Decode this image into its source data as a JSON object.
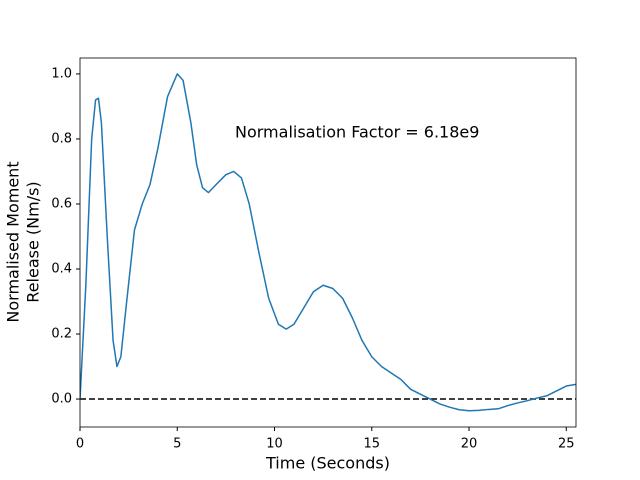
{
  "chart_data": {
    "type": "line",
    "xlabel": "Time (Seconds)",
    "ylabel": [
      "Normalised Moment",
      "Release (Nm/s)"
    ],
    "annotation": "Normalisation Factor = 6.18e9",
    "x": [
      0,
      0.3,
      0.6,
      0.8,
      0.95,
      1.1,
      1.4,
      1.7,
      1.9,
      2.1,
      2.4,
      2.8,
      3.2,
      3.6,
      4,
      4.5,
      5,
      5.3,
      5.7,
      6,
      6.3,
      6.6,
      7,
      7.5,
      7.9,
      8.3,
      8.7,
      9.2,
      9.7,
      10.2,
      10.6,
      11,
      11.5,
      12,
      12.5,
      13,
      13.5,
      14,
      14.5,
      15,
      15.5,
      16,
      16.5,
      17,
      17.5,
      18,
      18.5,
      19,
      19.5,
      20,
      20.5,
      21,
      21.5,
      22,
      22.5,
      23,
      23.5,
      24,
      24.5,
      25,
      25.5
    ],
    "series": [
      {
        "color": "#1f77b4",
        "values": [
          0,
          0.35,
          0.8,
          0.92,
          0.925,
          0.85,
          0.5,
          0.18,
          0.1,
          0.13,
          0.3,
          0.52,
          0.6,
          0.66,
          0.77,
          0.93,
          1.0,
          0.98,
          0.85,
          0.72,
          0.65,
          0.635,
          0.66,
          0.69,
          0.7,
          0.68,
          0.6,
          0.45,
          0.31,
          0.23,
          0.215,
          0.23,
          0.28,
          0.33,
          0.35,
          0.34,
          0.31,
          0.25,
          0.18,
          0.13,
          0.1,
          0.08,
          0.06,
          0.03,
          0.015,
          0,
          -0.015,
          -0.025,
          -0.033,
          -0.036,
          -0.035,
          -0.032,
          -0.03,
          -0.02,
          -0.012,
          -0.005,
          0.003,
          0.01,
          0.025,
          0.04,
          0.045
        ]
      }
    ],
    "reference_line": {
      "y": 0,
      "color": "#000000",
      "style": "dashed"
    },
    "xlim": [
      0,
      25.5
    ],
    "ylim": [
      -0.086,
      1.049
    ],
    "xticks": [
      0,
      5,
      10,
      15,
      20,
      25
    ],
    "yticks": [
      {
        "value": 0,
        "label": "0.0"
      },
      {
        "value": 0.2,
        "label": "0.2"
      },
      {
        "value": 0.4,
        "label": "0.4"
      },
      {
        "value": 0.6,
        "label": "0.6"
      },
      {
        "value": 0.8,
        "label": "0.8"
      },
      {
        "value": 1.0,
        "label": "1.0"
      }
    ]
  }
}
